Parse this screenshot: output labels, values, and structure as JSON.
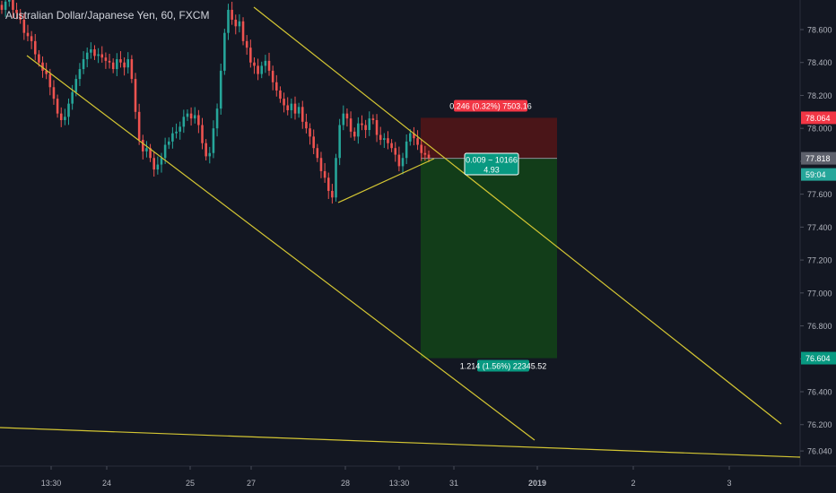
{
  "chart_data": {
    "type": "candlestick",
    "title": "Australian Dollar/Japanese Yen, 60, FXCM",
    "xlabel": "",
    "ylabel": "",
    "ylim": [
      75.97,
      78.79
    ],
    "x_ticks": [
      "13:30",
      "24",
      "25",
      "27",
      "28",
      "13:30",
      "31",
      "2019",
      "2",
      "3"
    ],
    "y_ticks": [
      78.6,
      78.4,
      78.2,
      78.0,
      77.8,
      77.6,
      77.4,
      77.2,
      77.0,
      76.8,
      76.6,
      76.4,
      76.2,
      76.04
    ],
    "y_tick_labels": [
      "78.600",
      "78.400",
      "78.200",
      "78.000",
      "77.800",
      "77.600",
      "77.400",
      "77.200",
      "77.000",
      "76.800",
      "76.600",
      "76.400",
      "76.200",
      "76.040"
    ],
    "current_price": 77.818,
    "current_price_label": "77.818",
    "countdown_label": "59:04",
    "stop_price": 78.064,
    "stop_price_label": "78.064",
    "target_price": 76.604,
    "target_price_label": "76.604",
    "position": {
      "entry": 77.818,
      "stop": 78.064,
      "target": 76.604,
      "stop_label": "0.246 (0.32%) 7503.16",
      "entry_label_line1": "0.009 ~ 10166",
      "entry_label_line2": "4.93",
      "target_label": "1.214 (1.56%) 22345.52"
    },
    "candles_close": [
      78.72,
      78.77,
      78.8,
      78.72,
      78.7,
      78.66,
      78.58,
      78.56,
      78.53,
      78.45,
      78.4,
      78.35,
      78.33,
      78.25,
      78.18,
      78.09,
      78.05,
      78.07,
      78.15,
      78.22,
      78.3,
      78.36,
      78.42,
      78.46,
      78.48,
      78.44,
      78.45,
      78.43,
      78.41,
      78.4,
      78.36,
      78.42,
      78.4,
      78.37,
      78.42,
      78.3,
      78.1,
      77.93,
      77.86,
      77.88,
      77.82,
      77.75,
      77.78,
      77.82,
      77.9,
      77.92,
      77.97,
      77.98,
      78.01,
      78.07,
      78.09,
      78.06,
      78.08,
      78.02,
      77.91,
      77.83,
      77.85,
      78.0,
      78.12,
      78.35,
      78.58,
      78.72,
      78.66,
      78.62,
      78.65,
      78.53,
      78.49,
      78.4,
      78.38,
      78.33,
      78.38,
      78.41,
      78.35,
      78.28,
      78.23,
      78.18,
      78.14,
      78.11,
      78.15,
      78.09,
      78.13,
      78.04,
      78.0,
      77.95,
      77.88,
      77.82,
      77.74,
      77.7,
      77.62,
      77.58,
      77.82,
      78.02,
      78.09,
      78.06,
      77.98,
      77.95,
      78.03,
      78.02,
      77.99,
      78.06,
      78.05,
      77.96,
      77.93,
      77.94,
      77.91,
      77.88,
      77.84,
      77.77,
      77.82,
      77.92,
      77.97,
      77.94,
      77.9,
      77.85,
      77.84,
      77.82
    ]
  },
  "header": {
    "symbol_title": "Australian Dollar/Japanese Yen, 60, FXCM"
  },
  "colors": {
    "background": "#131722",
    "candle_up": "#26a69a",
    "candle_down": "#ef5350",
    "trendline": "#d4c633",
    "stop_zone": "#4a1518",
    "target_zone": "#123d19",
    "stop_badge": "#f23645",
    "target_badge": "#089981",
    "axis_text": "#b2b5be",
    "current_badge": "#5d606b",
    "countdown_badge": "#26a69a"
  }
}
